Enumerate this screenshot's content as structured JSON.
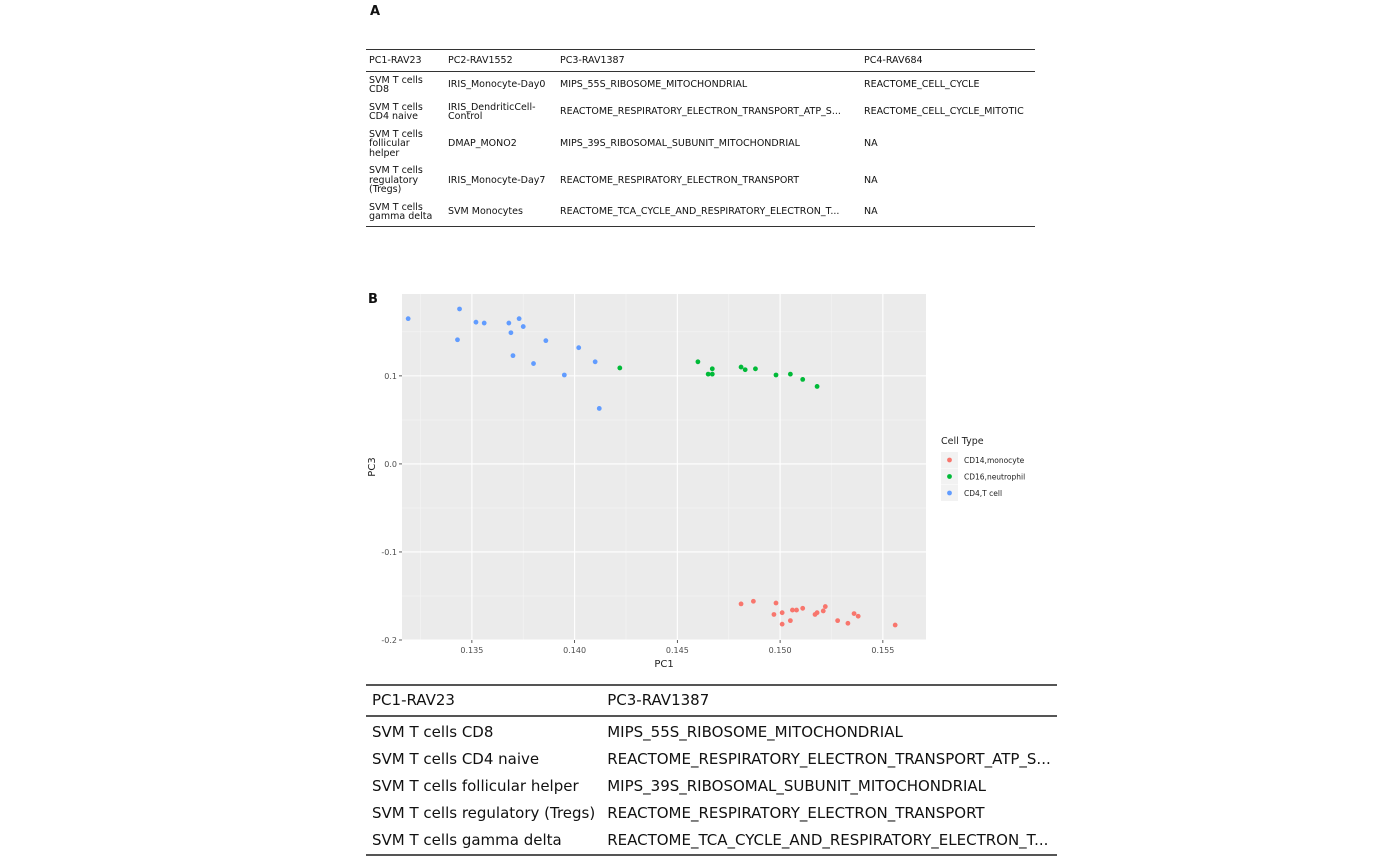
{
  "panel_a_label": "A",
  "panel_b_label": "B",
  "table_a": {
    "headers": [
      "PC1-RAV23",
      "PC2-RAV1552",
      "PC3-RAV1387",
      "PC4-RAV684"
    ],
    "rows": [
      [
        "SVM T cells CD8",
        "IRIS_Monocyte-Day0",
        "MIPS_55S_RIBOSOME_MITOCHONDRIAL",
        "REACTOME_CELL_CYCLE"
      ],
      [
        "SVM T cells CD4 naive",
        "IRIS_DendriticCell-Control",
        "REACTOME_RESPIRATORY_ELECTRON_TRANSPORT_ATP_S...",
        "REACTOME_CELL_CYCLE_MITOTIC"
      ],
      [
        "SVM T cells follicular helper",
        "DMAP_MONO2",
        "MIPS_39S_RIBOSOMAL_SUBUNIT_MITOCHONDRIAL",
        "NA"
      ],
      [
        "SVM T cells regulatory (Tregs)",
        "IRIS_Monocyte-Day7",
        "REACTOME_RESPIRATORY_ELECTRON_TRANSPORT",
        "NA"
      ],
      [
        "SVM T cells gamma delta",
        "SVM Monocytes",
        "REACTOME_TCA_CYCLE_AND_RESPIRATORY_ELECTRON_T...",
        "NA"
      ]
    ]
  },
  "chart_data": {
    "type": "scatter",
    "title": "",
    "xlabel": "PC1",
    "ylabel": "PC3",
    "xlim": [
      0.1316,
      0.1571
    ],
    "ylim": [
      -0.2,
      0.193
    ],
    "xticks": [
      0.135,
      0.14,
      0.145,
      0.15,
      0.155
    ],
    "xtick_labels": [
      "0.135",
      "0.140",
      "0.145",
      "0.150",
      "0.155"
    ],
    "yticks": [
      -0.2,
      -0.1,
      0.0,
      0.1
    ],
    "ytick_labels": [
      "-0.2",
      "-0.1",
      "0.0",
      "0.1"
    ],
    "grid": true,
    "legend_title": "Cell Type",
    "legend_position": "right",
    "series": [
      {
        "name": "CD14,monocyte",
        "color": "#F8766D",
        "points": [
          [
            0.1481,
            -0.159
          ],
          [
            0.1487,
            -0.156
          ],
          [
            0.1498,
            -0.158
          ],
          [
            0.1501,
            -0.169
          ],
          [
            0.1497,
            -0.171
          ],
          [
            0.1501,
            -0.182
          ],
          [
            0.1505,
            -0.178
          ],
          [
            0.1506,
            -0.166
          ],
          [
            0.1508,
            -0.166
          ],
          [
            0.1511,
            -0.164
          ],
          [
            0.1517,
            -0.171
          ],
          [
            0.1518,
            -0.169
          ],
          [
            0.1521,
            -0.167
          ],
          [
            0.1522,
            -0.162
          ],
          [
            0.1528,
            -0.178
          ],
          [
            0.1533,
            -0.181
          ],
          [
            0.1536,
            -0.17
          ],
          [
            0.1538,
            -0.173
          ],
          [
            0.1556,
            -0.183
          ]
        ]
      },
      {
        "name": "CD16,neutrophil",
        "color": "#00BA38",
        "points": [
          [
            0.1422,
            0.109
          ],
          [
            0.146,
            0.116
          ],
          [
            0.1465,
            0.102
          ],
          [
            0.1467,
            0.108
          ],
          [
            0.1467,
            0.102
          ],
          [
            0.1481,
            0.11
          ],
          [
            0.1483,
            0.107
          ],
          [
            0.1488,
            0.108
          ],
          [
            0.1498,
            0.101
          ],
          [
            0.1505,
            0.102
          ],
          [
            0.1511,
            0.096
          ],
          [
            0.1518,
            0.088
          ]
        ]
      },
      {
        "name": "CD4,T cell",
        "color": "#619CFF",
        "points": [
          [
            0.1319,
            0.165
          ],
          [
            0.1343,
            0.141
          ],
          [
            0.1344,
            0.176
          ],
          [
            0.1352,
            0.161
          ],
          [
            0.1356,
            0.16
          ],
          [
            0.1368,
            0.16
          ],
          [
            0.1369,
            0.149
          ],
          [
            0.137,
            0.123
          ],
          [
            0.1373,
            0.165
          ],
          [
            0.1375,
            0.156
          ],
          [
            0.138,
            0.114
          ],
          [
            0.1386,
            0.14
          ],
          [
            0.1395,
            0.101
          ],
          [
            0.1402,
            0.132
          ],
          [
            0.141,
            0.116
          ],
          [
            0.1412,
            0.063
          ]
        ]
      }
    ]
  },
  "table_c": {
    "headers": [
      "PC1-RAV23",
      "PC3-RAV1387"
    ],
    "rows": [
      [
        "SVM T cells CD8",
        "MIPS_55S_RIBOSOME_MITOCHONDRIAL"
      ],
      [
        "SVM T cells CD4 naive",
        "REACTOME_RESPIRATORY_ELECTRON_TRANSPORT_ATP_S..."
      ],
      [
        "SVM T cells follicular helper",
        "MIPS_39S_RIBOSOMAL_SUBUNIT_MITOCHONDRIAL"
      ],
      [
        "SVM T cells regulatory (Tregs)",
        "REACTOME_RESPIRATORY_ELECTRON_TRANSPORT"
      ],
      [
        "SVM T cells gamma delta",
        "REACTOME_TCA_CYCLE_AND_RESPIRATORY_ELECTRON_T..."
      ]
    ]
  }
}
